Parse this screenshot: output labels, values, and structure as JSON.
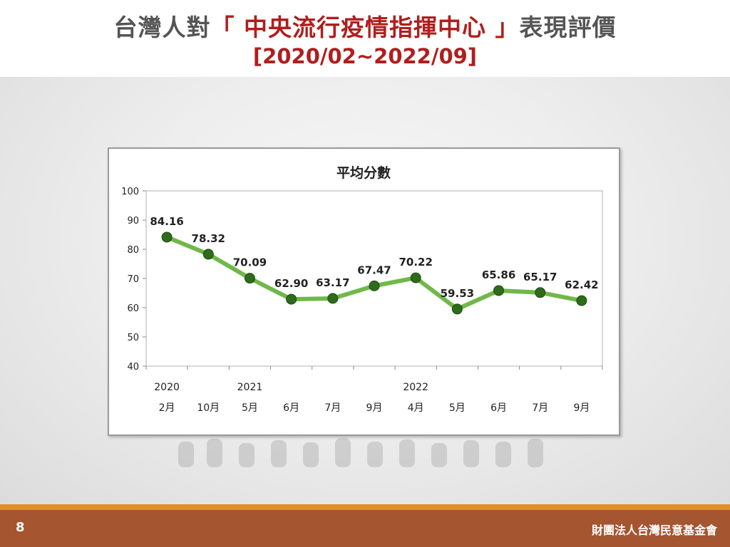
{
  "slide": {
    "title_prefix": "台灣人對",
    "title_highlight": "「 中央流行疫情指揮中心 」",
    "title_suffix": "表現評價",
    "subtitle": "[2020/02~2022/09]",
    "page_number": "8",
    "organization": "財團法人台灣民意基金會"
  },
  "colors": {
    "line": "#70b84a",
    "marker": "#2e6b1a",
    "title_red": "#b01e1e",
    "footer": "#a55530",
    "footer_accent": "#e0901f"
  },
  "chart_data": {
    "type": "line",
    "title": "平均分數",
    "categories": [
      "2月",
      "10月",
      "5月",
      "6月",
      "7月",
      "9月",
      "4月",
      "5月",
      "6月",
      "7月",
      "9月"
    ],
    "year_labels": [
      {
        "index": 0,
        "label": "2020"
      },
      {
        "index": 2,
        "label": "2021"
      },
      {
        "index": 6,
        "label": "2022"
      }
    ],
    "values": [
      84.16,
      78.32,
      70.09,
      62.9,
      63.17,
      67.47,
      70.22,
      59.53,
      65.86,
      65.17,
      62.42
    ],
    "data_labels": [
      "84.16",
      "78.32",
      "70.09",
      "62.90",
      "63.17",
      "67.47",
      "70.22",
      "59.53",
      "65.86",
      "65.17",
      "62.42"
    ],
    "ylim": [
      40,
      100
    ],
    "yticks": [
      40,
      50,
      60,
      70,
      80,
      90,
      100
    ],
    "grid": false,
    "legend": "none"
  }
}
